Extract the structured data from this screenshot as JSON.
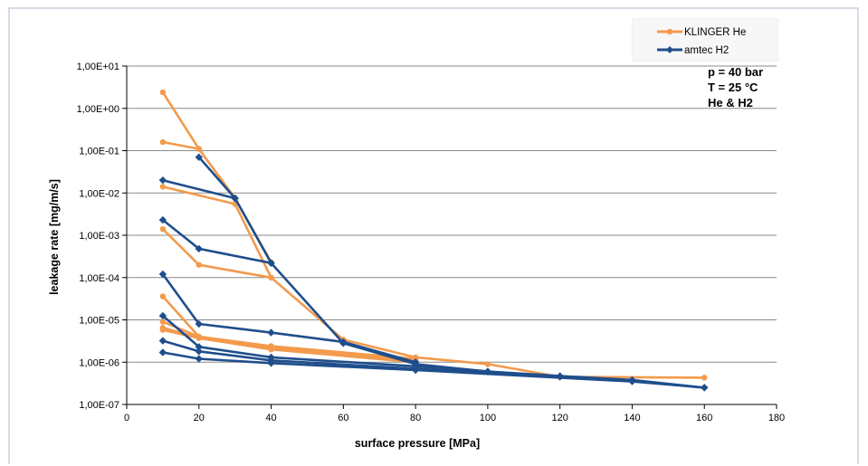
{
  "chart_data": {
    "type": "line",
    "xlabel": "surface pressure [MPa]",
    "ylabel": "leakage rate [mg/m/s]",
    "xlim": [
      0,
      180
    ],
    "xticks": [
      "0",
      "20",
      "40",
      "60",
      "80",
      "100",
      "120",
      "140",
      "160",
      "180"
    ],
    "yscale": "log",
    "ylim": [
      1e-07,
      10
    ],
    "yticks": [
      "1,00E-07",
      "1,00E-06",
      "1,00E-05",
      "1,00E-04",
      "1,00E-03",
      "1,00E-02",
      "1,00E-01",
      "1,00E+00",
      "1,00E+01"
    ],
    "grid": "horizontal",
    "legend_position": "top-right",
    "annotations": [
      "p = 40 bar",
      "T = 25 °C",
      "He & H2"
    ],
    "series": [
      {
        "name": "KLINGER He",
        "color": "#f39a4c",
        "marker": "circle",
        "lines": [
          [
            [
              10,
              2.4
            ],
            [
              20,
              0.11
            ],
            [
              30,
              0.0075
            ],
            [
              40,
              0.00023
            ]
          ],
          [
            [
              10,
              0.16
            ],
            [
              20,
              0.11
            ],
            [
              30,
              0.0075
            ]
          ],
          [
            [
              10,
              0.014
            ],
            [
              30,
              0.0055
            ],
            [
              40,
              0.0001
            ],
            [
              60,
              3.4e-06
            ],
            [
              80,
              1.3e-06
            ],
            [
              100,
              9e-07
            ],
            [
              120,
              4.5e-07
            ],
            [
              160,
              4.3e-07
            ]
          ],
          [
            [
              10,
              0.0014
            ],
            [
              20,
              0.0002
            ],
            [
              40,
              0.0001
            ]
          ],
          [
            [
              10,
              3.6e-05
            ],
            [
              20,
              4e-06
            ],
            [
              40,
              2.4e-06
            ],
            [
              80,
              1.2e-06
            ]
          ],
          [
            [
              10,
              9e-06
            ],
            [
              20,
              4e-06
            ],
            [
              40,
              2.2e-06
            ],
            [
              80,
              1.1e-06
            ]
          ],
          [
            [
              10,
              6.5e-06
            ],
            [
              20,
              3.8e-06
            ],
            [
              40,
              2.1e-06
            ],
            [
              80,
              1.05e-06
            ]
          ],
          [
            [
              10,
              5.8e-06
            ],
            [
              20,
              3.7e-06
            ],
            [
              40,
              2e-06
            ],
            [
              80,
              1e-06
            ]
          ]
        ]
      },
      {
        "name": "amtec H2",
        "color": "#1f4e8c",
        "marker": "diamond",
        "lines": [
          [
            [
              20,
              0.07
            ],
            [
              30,
              0.0075
            ],
            [
              40,
              0.00022
            ],
            [
              60,
              2.8e-06
            ],
            [
              80,
              9e-07
            ],
            [
              100,
              6e-07
            ],
            [
              120,
              4.7e-07
            ],
            [
              140,
              3.8e-07
            ],
            [
              160,
              2.5e-07
            ]
          ],
          [
            [
              10,
              0.02
            ],
            [
              30,
              0.0075
            ]
          ],
          [
            [
              10,
              0.0023
            ],
            [
              20,
              0.00048
            ],
            [
              40,
              0.00022
            ]
          ],
          [
            [
              10,
              0.00012
            ],
            [
              20,
              8e-06
            ],
            [
              40,
              5e-06
            ],
            [
              60,
              3e-06
            ],
            [
              80,
              1e-06
            ]
          ],
          [
            [
              10,
              1.25e-05
            ],
            [
              20,
              2.3e-06
            ],
            [
              40,
              1.3e-06
            ],
            [
              80,
              8e-07
            ],
            [
              100,
              6e-07
            ]
          ],
          [
            [
              10,
              3.2e-06
            ],
            [
              20,
              1.8e-06
            ],
            [
              40,
              1.1e-06
            ],
            [
              80,
              7e-07
            ],
            [
              120,
              4.5e-07
            ]
          ],
          [
            [
              10,
              1.7e-06
            ],
            [
              20,
              1.2e-06
            ],
            [
              40,
              9.5e-07
            ],
            [
              80,
              6.5e-07
            ],
            [
              140,
              3.5e-07
            ],
            [
              160,
              2.5e-07
            ]
          ]
        ]
      }
    ]
  }
}
